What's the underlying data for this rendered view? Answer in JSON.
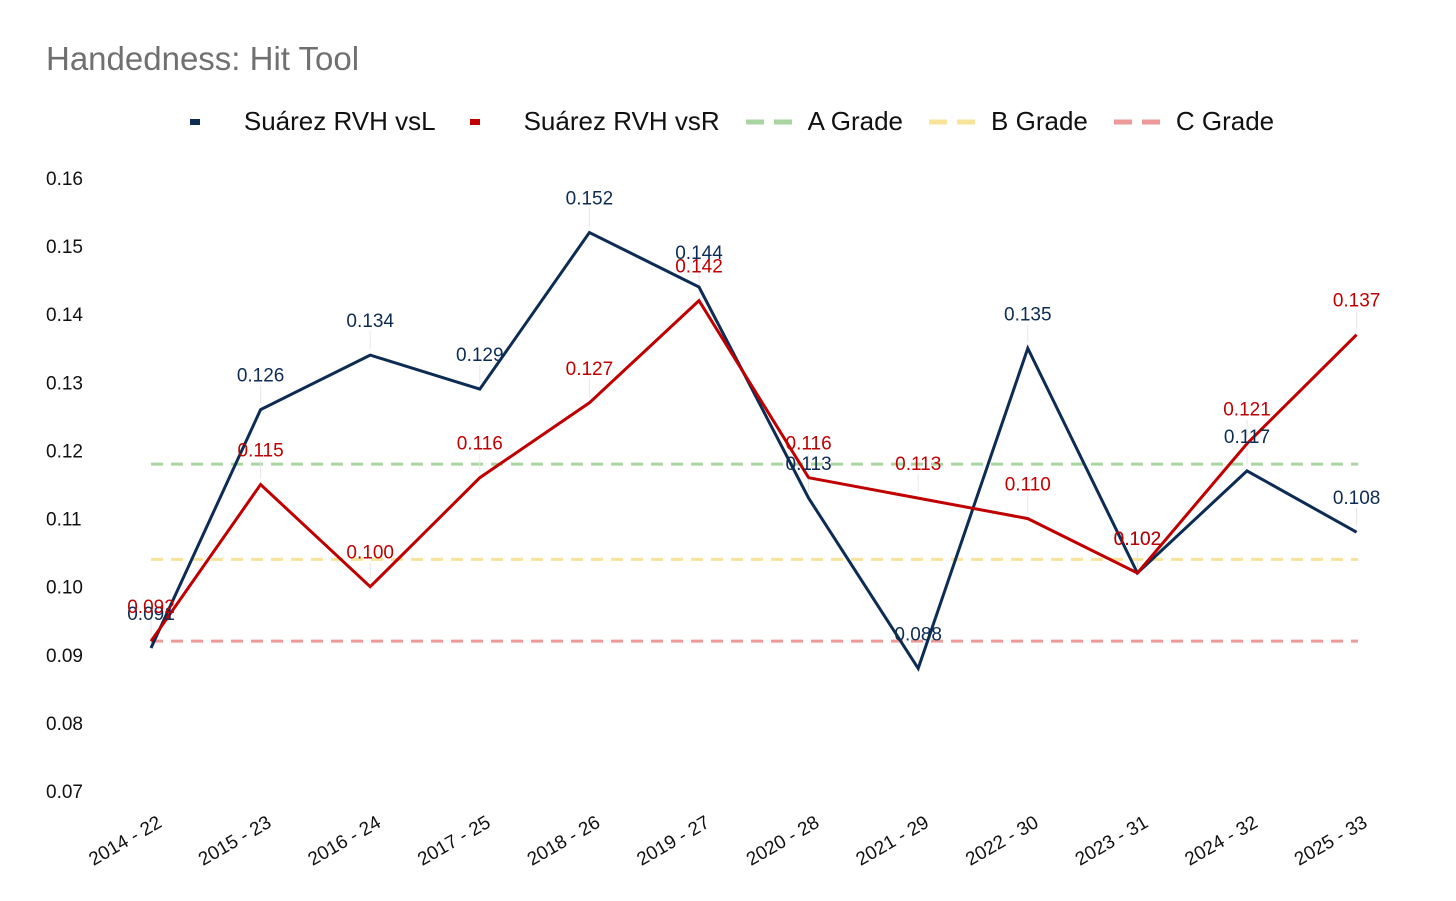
{
  "chart_data": {
    "type": "line",
    "title": "Handedness: Hit Tool",
    "xlabel": "",
    "ylabel": "",
    "ylim": [
      0.07,
      0.16
    ],
    "yticks": [
      "0.07",
      "0.08",
      "0.09",
      "0.10",
      "0.11",
      "0.12",
      "0.13",
      "0.14",
      "0.15",
      "0.16"
    ],
    "grid": false,
    "legend_position": "top-center",
    "categories": [
      "2014 - 22",
      "2015 - 23",
      "2016 - 24",
      "2017 - 25",
      "2018 - 26",
      "2019 - 27",
      "2020 - 28",
      "2021 - 29",
      "2022 - 30",
      "2023 - 31",
      "2024 - 32",
      "2025 - 33"
    ],
    "series": [
      {
        "name": "Suárez RVH vsL",
        "color": "#0d2c54",
        "style": "solid",
        "values": [
          0.091,
          0.126,
          0.134,
          0.129,
          0.152,
          0.144,
          0.113,
          0.088,
          0.135,
          0.102,
          0.117,
          0.108
        ],
        "labels": [
          "0.091",
          "0.126",
          "0.134",
          "0.129",
          "0.152",
          "0.144",
          "0.113",
          "0.088",
          "0.135",
          "0.102",
          "0.117",
          "0.108"
        ]
      },
      {
        "name": "Suárez RVH vsR",
        "color": "#c00000",
        "style": "solid",
        "values": [
          0.092,
          0.115,
          0.1,
          0.116,
          0.127,
          0.142,
          0.116,
          0.113,
          0.11,
          0.102,
          0.121,
          0.137
        ],
        "labels": [
          "0.092",
          "0.115",
          "0.100",
          "0.116",
          "0.127",
          "0.142",
          "0.116",
          "0.113",
          "0.110",
          "0.102",
          "0.121",
          "0.137"
        ]
      }
    ],
    "reference_lines": [
      {
        "name": "A Grade",
        "value": 0.118,
        "color": "#a8d5a0",
        "style": "dashed"
      },
      {
        "name": "B Grade",
        "value": 0.104,
        "color": "#f7e39a",
        "style": "dashed"
      },
      {
        "name": "C Grade",
        "value": 0.092,
        "color": "#ee9a9a",
        "style": "dashed"
      }
    ]
  }
}
